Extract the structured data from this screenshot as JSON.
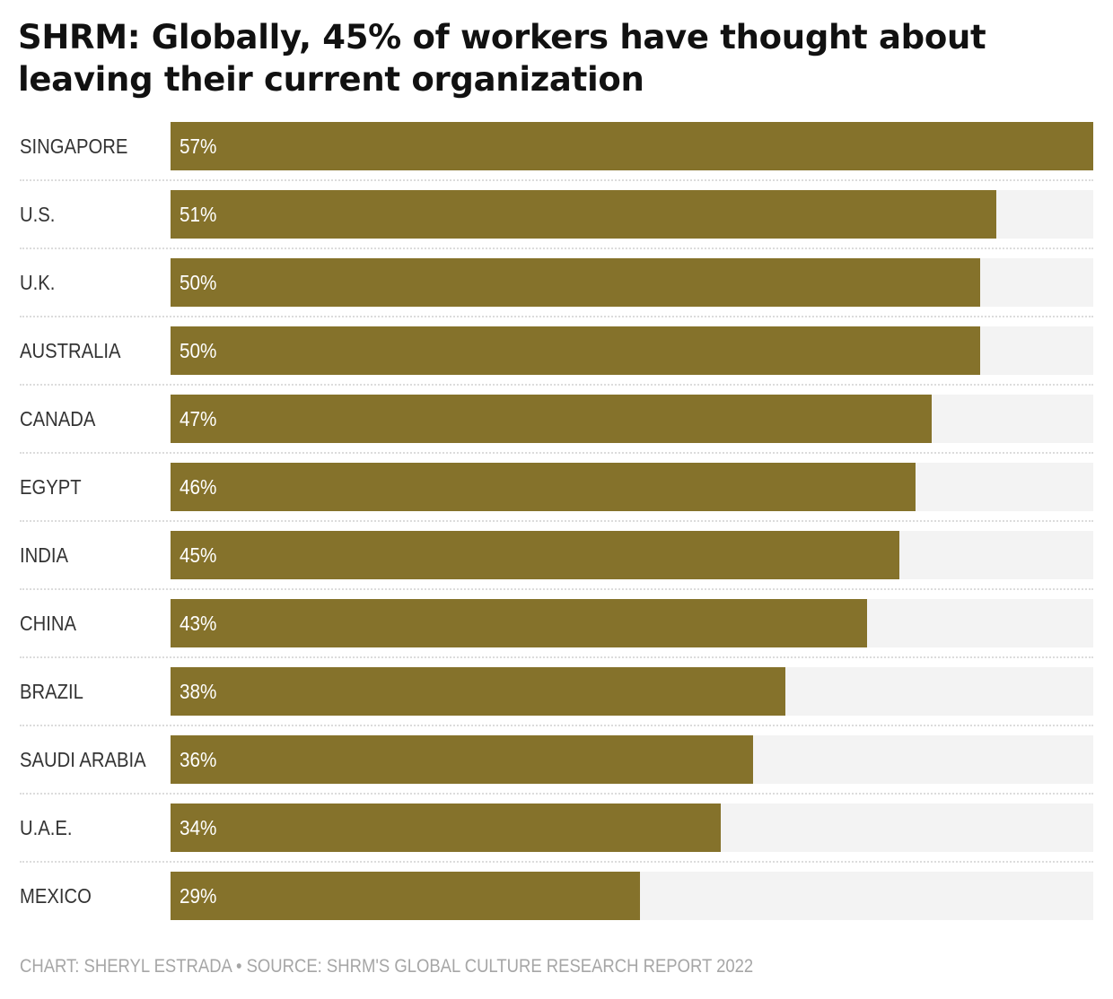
{
  "chart_data": {
    "type": "bar",
    "orientation": "horizontal",
    "title": "SHRM: Globally, 45% of workers have thought about leaving their current organization",
    "xlabel": "",
    "ylabel": "",
    "xlim": [
      0,
      57
    ],
    "grid": false,
    "legend": "none",
    "bar_color": "#85722b",
    "track_color": "#f3f3f3",
    "categories": [
      "SINGAPORE",
      "U.S.",
      "U.K.",
      "AUSTRALIA",
      "CANADA",
      "EGYPT",
      "INDIA",
      "CHINA",
      "BRAZIL",
      "SAUDI ARABIA",
      "U.A.E.",
      "MEXICO"
    ],
    "values": [
      57,
      51,
      50,
      50,
      47,
      46,
      45,
      43,
      38,
      36,
      34,
      29
    ],
    "value_labels": [
      "57%",
      "51%",
      "50%",
      "50%",
      "47%",
      "46%",
      "45%",
      "43%",
      "38%",
      "36%",
      "34%",
      "29%"
    ],
    "footer": "CHART: SHERYL ESTRADA • SOURCE: SHRM'S GLOBAL CULTURE RESEARCH REPORT 2022"
  }
}
